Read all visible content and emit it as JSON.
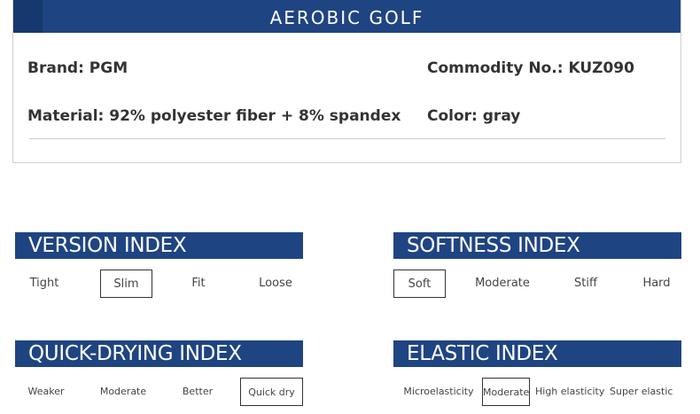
{
  "header": {
    "title": "AEROBIC GOLF"
  },
  "specs": {
    "brand": "Brand: PGM",
    "commodity_no": "Commodity No.: KUZ090",
    "material": "Material: 92% polyester fiber + 8% spandex",
    "color": "Color: gray"
  },
  "indexes": {
    "version": {
      "title": "VERSION INDEX",
      "options": [
        "Tight",
        "Slim",
        "Fit",
        "Loose"
      ],
      "selected": "Slim"
    },
    "softness": {
      "title": "SOFTNESS INDEX",
      "options": [
        "Soft",
        "Moderate",
        "Stiff",
        "Hard"
      ],
      "selected": "Soft"
    },
    "quick_drying": {
      "title": "QUICK-DRYING INDEX",
      "options": [
        "Weaker",
        "Moderate",
        "Better",
        "Quick dry"
      ],
      "selected": "Quick dry"
    },
    "elastic": {
      "title": "ELASTIC INDEX",
      "options": [
        "Microelasticity",
        "Moderate",
        "High elasticity",
        "Super elastic"
      ],
      "selected": "Moderate"
    }
  },
  "colors": {
    "accent": "#1f4482",
    "accent_dark": "#17386e",
    "text": "#333333",
    "border": "#cfcfcf"
  }
}
